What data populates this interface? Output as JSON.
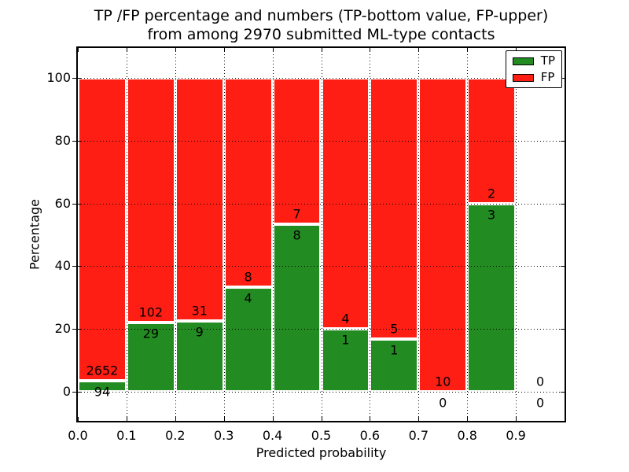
{
  "chart_data": {
    "type": "bar",
    "stacked": true,
    "units": "percent",
    "title": "TP /FP percentage and numbers (TP-bottom value, FP-upper)",
    "subtitle": "from among 2970 submitted ML-type contacts",
    "xlabel": "Predicted probability",
    "ylabel": "Percentage",
    "bins": {
      "start": 0.0,
      "width": 0.1,
      "count": 10
    },
    "categories": [
      "0.0-0.1",
      "0.1-0.2",
      "0.2-0.3",
      "0.3-0.4",
      "0.4-0.5",
      "0.5-0.6",
      "0.6-0.7",
      "0.7-0.8",
      "0.8-0.9",
      "0.9-1.0"
    ],
    "series": [
      {
        "name": "TP",
        "color": "#228b22",
        "counts": [
          94,
          29,
          9,
          4,
          8,
          1,
          1,
          0,
          3,
          0
        ]
      },
      {
        "name": "FP",
        "color": "#fe1e14",
        "counts": [
          2652,
          102,
          31,
          8,
          7,
          4,
          5,
          10,
          2,
          0
        ]
      }
    ],
    "tp_percent": [
      3.42,
      22.14,
      22.5,
      33.33,
      53.33,
      20.0,
      16.67,
      0.0,
      60.0,
      null
    ],
    "xticks": [
      "0.0",
      "0.1",
      "0.2",
      "0.3",
      "0.4",
      "0.5",
      "0.6",
      "0.7",
      "0.8",
      "0.9"
    ],
    "yticks": [
      0,
      20,
      40,
      60,
      80,
      100
    ],
    "xlim": [
      0.0,
      1.0
    ],
    "ylim": [
      -9.3,
      109.6
    ],
    "grid": "dotted",
    "legend": {
      "position": "upper right",
      "entries": [
        {
          "label": "TP",
          "color": "#228b22"
        },
        {
          "label": "FP",
          "color": "#fe1e14"
        }
      ]
    }
  }
}
